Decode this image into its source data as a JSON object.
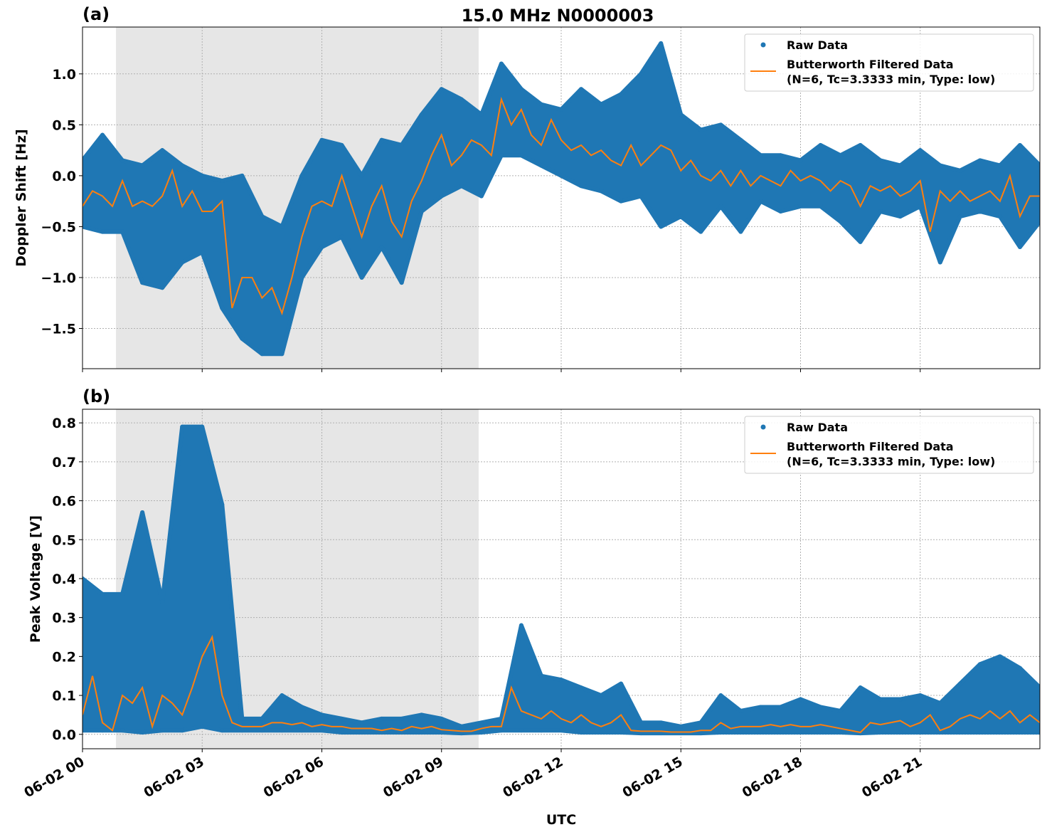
{
  "title": "15.0 MHz N0000003",
  "xlabel": "UTC",
  "colors": {
    "raw": "#1f77b4",
    "filtered": "#ff7f0e",
    "night_shade": "#e6e6e6",
    "grid": "#b0b0b0"
  },
  "x_ticks": {
    "hours": [
      0,
      3,
      6,
      9,
      12,
      15,
      18,
      21
    ],
    "labels": [
      "06-02 00",
      "06-02 03",
      "06-02 06",
      "06-02 09",
      "06-02 12",
      "06-02 15",
      "06-02 18",
      "06-02 21"
    ]
  },
  "chart_data": [
    {
      "type": "scatter",
      "panel_label": "(a)",
      "ylabel": "Doppler Shift [Hz]",
      "xlim_hours": [
        0,
        24
      ],
      "ylim": [
        -1.895,
        1.46
      ],
      "yticks": [
        -1.5,
        -1.0,
        -0.5,
        0.0,
        0.5,
        1.0
      ],
      "ytick_labels": [
        "−1.5",
        "−1.0",
        "−0.5",
        "0.0",
        "0.5",
        "1.0"
      ],
      "grid": true,
      "shaded_interval_hours": [
        0.84,
        9.93
      ],
      "legend": {
        "placement": "top-right",
        "raw": "Raw Data",
        "filtered_line1": "Butterworth Filtered Data",
        "filtered_line2": "(N=6, Tc=3.3333 min, Type: low)"
      },
      "filtered": {
        "x_step_hours": 0.25,
        "values": [
          -0.3,
          -0.15,
          -0.2,
          -0.3,
          -0.05,
          -0.3,
          -0.25,
          -0.3,
          -0.2,
          0.05,
          -0.3,
          -0.15,
          -0.35,
          -0.35,
          -0.25,
          -1.3,
          -1.0,
          -1.0,
          -1.2,
          -1.1,
          -1.35,
          -1.0,
          -0.6,
          -0.3,
          -0.25,
          -0.3,
          0.0,
          -0.3,
          -0.6,
          -0.3,
          -0.1,
          -0.45,
          -0.6,
          -0.25,
          -0.05,
          0.2,
          0.4,
          0.1,
          0.2,
          0.35,
          0.3,
          0.2,
          0.75,
          0.5,
          0.65,
          0.4,
          0.3,
          0.55,
          0.35,
          0.25,
          0.3,
          0.2,
          0.25,
          0.15,
          0.1,
          0.3,
          0.1,
          0.2,
          0.3,
          0.25,
          0.05,
          0.15,
          0.0,
          -0.05,
          0.05,
          -0.1,
          0.05,
          -0.1,
          0.0,
          -0.05,
          -0.1,
          0.05,
          -0.05,
          0.0,
          -0.05,
          -0.15,
          -0.05,
          -0.1,
          -0.3,
          -0.1,
          -0.15,
          -0.1,
          -0.2,
          -0.15,
          -0.05,
          -0.55,
          -0.15,
          -0.25,
          -0.15,
          -0.25,
          -0.2,
          -0.15,
          -0.25,
          0.0,
          -0.4,
          -0.2,
          -0.2
        ]
      },
      "raw_envelope": {
        "x_step_hours": 0.5,
        "min": [
          -0.5,
          -0.55,
          -0.55,
          -1.05,
          -1.1,
          -0.85,
          -0.75,
          -1.3,
          -1.6,
          -1.75,
          -1.75,
          -1.0,
          -0.7,
          -0.6,
          -1.0,
          -0.7,
          -1.05,
          -0.35,
          -0.2,
          -0.1,
          -0.2,
          0.2,
          0.2,
          0.1,
          0.0,
          -0.1,
          -0.15,
          -0.25,
          -0.2,
          -0.5,
          -0.4,
          -0.55,
          -0.3,
          -0.55,
          -0.25,
          -0.35,
          -0.3,
          -0.3,
          -0.45,
          -0.65,
          -0.35,
          -0.4,
          -0.3,
          -0.85,
          -0.4,
          -0.35,
          -0.4,
          -0.7,
          -0.45
        ],
        "max": [
          0.15,
          0.4,
          0.15,
          0.1,
          0.25,
          0.1,
          0.0,
          -0.05,
          0.0,
          -0.4,
          -0.5,
          0.0,
          0.35,
          0.3,
          0.0,
          0.35,
          0.3,
          0.6,
          0.85,
          0.75,
          0.6,
          1.1,
          0.85,
          0.7,
          0.65,
          0.85,
          0.7,
          0.8,
          1.0,
          1.3,
          0.6,
          0.45,
          0.5,
          0.35,
          0.2,
          0.2,
          0.15,
          0.3,
          0.2,
          0.3,
          0.15,
          0.1,
          0.25,
          0.1,
          0.05,
          0.15,
          0.1,
          0.3,
          0.1
        ]
      }
    },
    {
      "type": "scatter",
      "panel_label": "(b)",
      "ylabel": "Peak Voltage [V]",
      "xlim_hours": [
        0,
        24
      ],
      "ylim": [
        -0.037,
        0.835
      ],
      "yticks": [
        0.0,
        0.1,
        0.2,
        0.3,
        0.4,
        0.5,
        0.6,
        0.7,
        0.8
      ],
      "ytick_labels": [
        "0.0",
        "0.1",
        "0.2",
        "0.3",
        "0.4",
        "0.5",
        "0.6",
        "0.7",
        "0.8"
      ],
      "grid": true,
      "shaded_interval_hours": [
        0.84,
        9.93
      ],
      "legend": {
        "placement": "top-right",
        "raw": "Raw Data",
        "filtered_line1": "Butterworth Filtered Data",
        "filtered_line2": "(N=6, Tc=3.3333 min, Type: low)"
      },
      "filtered": {
        "x_step_hours": 0.25,
        "values": [
          0.05,
          0.15,
          0.03,
          0.01,
          0.1,
          0.08,
          0.12,
          0.02,
          0.1,
          0.08,
          0.05,
          0.12,
          0.2,
          0.25,
          0.1,
          0.03,
          0.02,
          0.02,
          0.02,
          0.03,
          0.03,
          0.025,
          0.03,
          0.02,
          0.025,
          0.02,
          0.02,
          0.015,
          0.015,
          0.015,
          0.01,
          0.015,
          0.01,
          0.02,
          0.015,
          0.02,
          0.012,
          0.01,
          0.008,
          0.008,
          0.015,
          0.02,
          0.02,
          0.12,
          0.06,
          0.05,
          0.04,
          0.06,
          0.04,
          0.03,
          0.05,
          0.03,
          0.02,
          0.03,
          0.05,
          0.01,
          0.008,
          0.008,
          0.008,
          0.006,
          0.006,
          0.006,
          0.01,
          0.01,
          0.03,
          0.015,
          0.02,
          0.02,
          0.02,
          0.025,
          0.02,
          0.025,
          0.02,
          0.02,
          0.025,
          0.02,
          0.015,
          0.01,
          0.005,
          0.03,
          0.025,
          0.03,
          0.035,
          0.02,
          0.03,
          0.05,
          0.01,
          0.02,
          0.04,
          0.05,
          0.04,
          0.06,
          0.04,
          0.06,
          0.03,
          0.05,
          0.03
        ]
      },
      "raw_envelope": {
        "x_step_hours": 0.5,
        "min": [
          0.01,
          0.01,
          0.01,
          0.005,
          0.01,
          0.01,
          0.02,
          0.01,
          0.01,
          0.01,
          0.01,
          0.01,
          0.01,
          0.005,
          0.005,
          0.005,
          0.005,
          0.005,
          0.005,
          0.003,
          0.005,
          0.01,
          0.01,
          0.01,
          0.01,
          0.005,
          0.005,
          0.005,
          0.003,
          0.003,
          0.003,
          0.003,
          0.005,
          0.005,
          0.005,
          0.005,
          0.005,
          0.005,
          0.005,
          0.003,
          0.005,
          0.005,
          0.005,
          0.005,
          0.005,
          0.005,
          0.005,
          0.005,
          0.005
        ],
        "max": [
          0.4,
          0.36,
          0.36,
          0.57,
          0.34,
          0.79,
          0.79,
          0.59,
          0.04,
          0.04,
          0.1,
          0.07,
          0.05,
          0.04,
          0.03,
          0.04,
          0.04,
          0.05,
          0.04,
          0.02,
          0.03,
          0.04,
          0.28,
          0.15,
          0.14,
          0.12,
          0.1,
          0.13,
          0.03,
          0.03,
          0.02,
          0.03,
          0.1,
          0.06,
          0.07,
          0.07,
          0.09,
          0.07,
          0.06,
          0.12,
          0.09,
          0.09,
          0.1,
          0.08,
          0.13,
          0.18,
          0.2,
          0.17,
          0.12
        ]
      }
    }
  ]
}
